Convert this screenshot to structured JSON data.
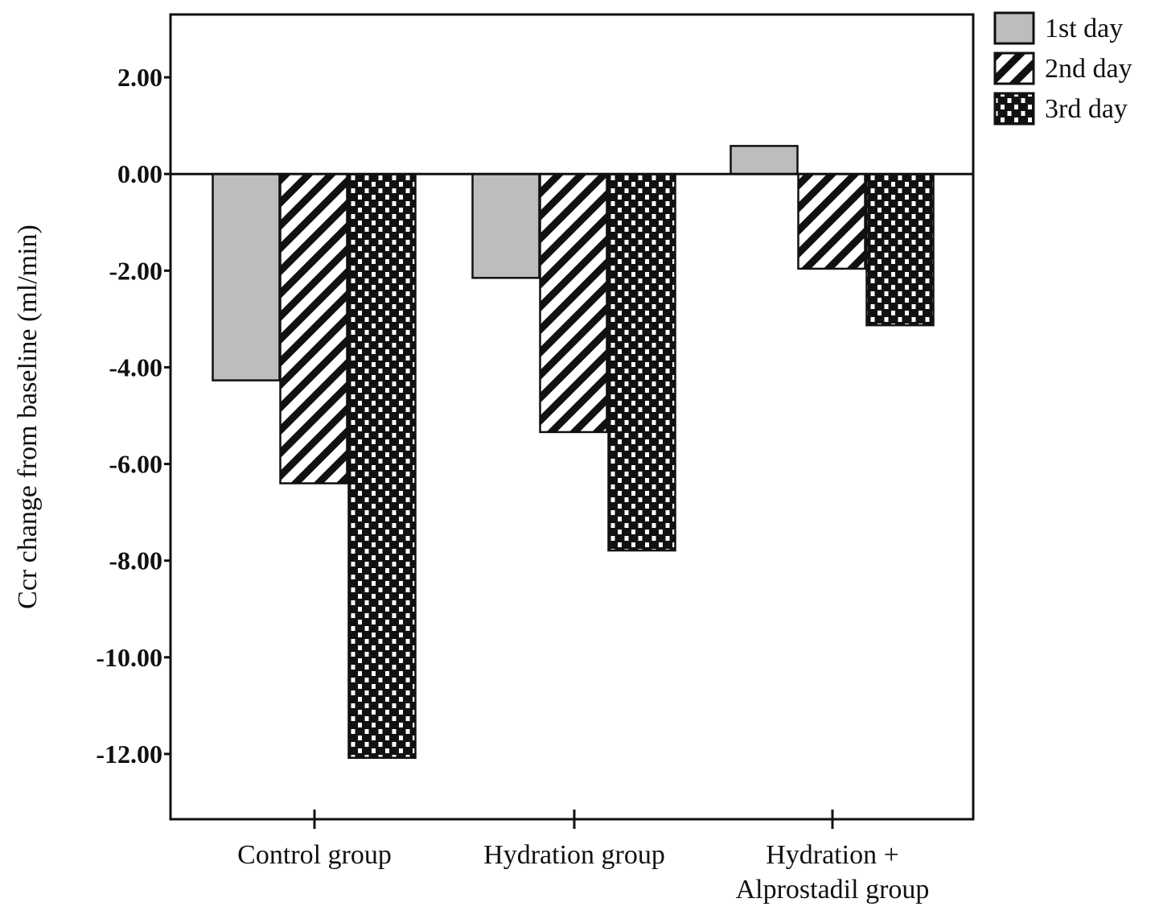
{
  "chart_data": {
    "type": "bar",
    "title": "",
    "xlabel": "",
    "ylabel": "Ccr change from baseline (ml/min)",
    "categories": [
      "Control group",
      "Hydration group",
      "Hydration + Alprostadil group"
    ],
    "category_lines": [
      [
        "Control group"
      ],
      [
        "Hydration group"
      ],
      [
        "Hydration +",
        "Alprostadil group"
      ]
    ],
    "series": [
      {
        "name": "1st day",
        "values": [
          -4.27,
          -2.15,
          0.58
        ],
        "fill": "gray"
      },
      {
        "name": "2nd day",
        "values": [
          -6.4,
          -5.34,
          -1.96
        ],
        "fill": "diagonal-hatch"
      },
      {
        "name": "3rd day",
        "values": [
          -12.08,
          -7.79,
          -3.13
        ],
        "fill": "checker"
      }
    ],
    "yticks": [
      2,
      0,
      -2,
      -4,
      -6,
      -8,
      -10,
      -12
    ],
    "ytick_labels": [
      "2.00",
      "0.00",
      "-2.00",
      "-4.00",
      "-6.00",
      "-8.00",
      "-10.00",
      "-12.00"
    ],
    "ylim": [
      -13.35,
      3.3
    ],
    "grid": false,
    "legend_position": "top-right (outside)",
    "colors": {
      "gray": "#bdbdbd",
      "ink": "#111111"
    }
  }
}
